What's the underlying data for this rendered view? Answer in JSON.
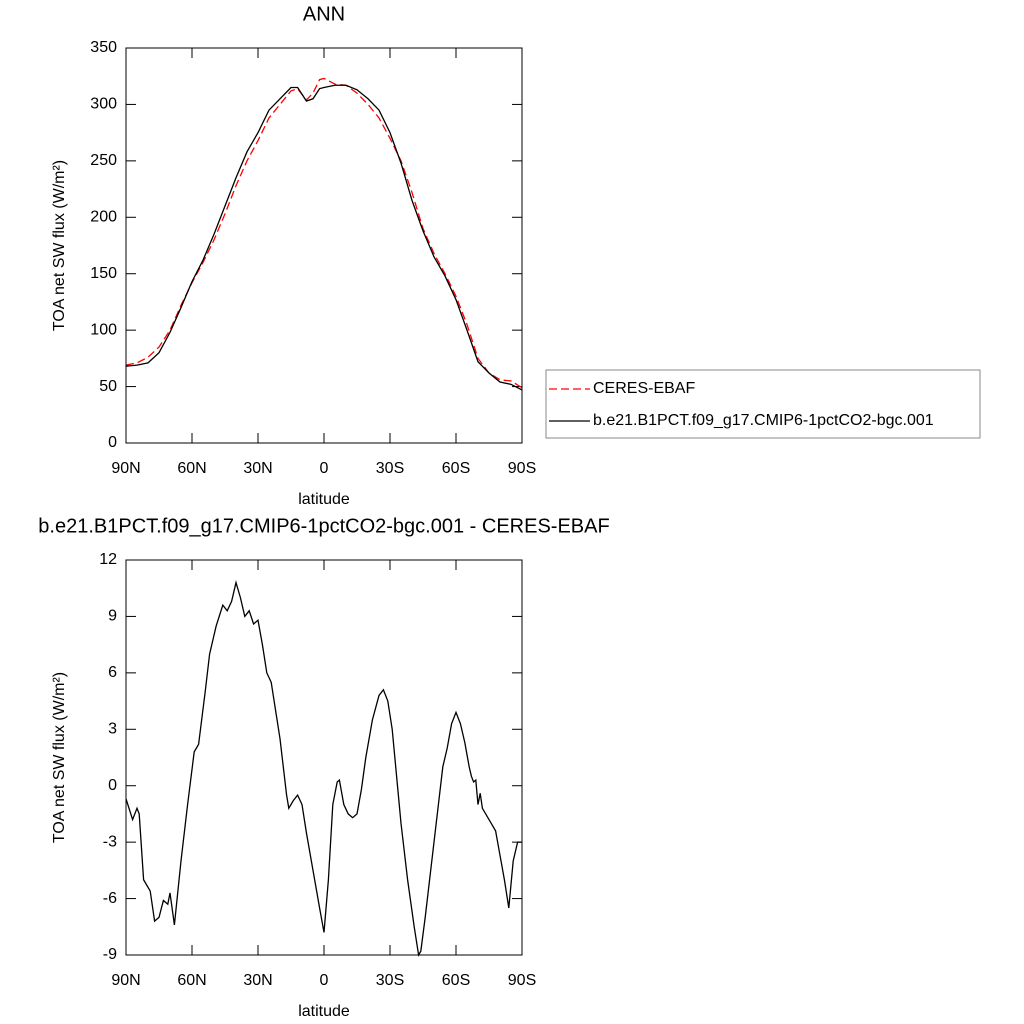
{
  "chart_data": [
    {
      "type": "line",
      "title": "ANN",
      "xlabel": "latitude",
      "ylabel": "TOA net SW flux (W/m²)",
      "x": [
        90,
        85,
        80,
        75,
        70,
        65,
        60,
        55,
        50,
        45,
        40,
        35,
        30,
        25,
        20,
        15,
        12,
        8,
        5,
        2,
        0,
        -5,
        -10,
        -15,
        -20,
        -25,
        -30,
        -35,
        -40,
        -45,
        -50,
        -55,
        -60,
        -65,
        -70,
        -75,
        -80,
        -85,
        -90
      ],
      "xlim": [
        90,
        -90
      ],
      "xticks": [
        {
          "value": 90,
          "label": "90N"
        },
        {
          "value": 60,
          "label": "60N"
        },
        {
          "value": 30,
          "label": "30N"
        },
        0,
        {
          "value": -30,
          "label": "30S"
        },
        {
          "value": -60,
          "label": "60S"
        },
        {
          "value": -90,
          "label": "90S"
        }
      ],
      "ylim": [
        0,
        350
      ],
      "yticks": [
        0,
        50,
        100,
        150,
        200,
        250,
        300,
        350
      ],
      "legend": "right",
      "series": [
        {
          "name": "CERES-EBAF",
          "color": "#ff0000",
          "dash": true,
          "values": [
            69,
            71,
            76,
            85,
            100,
            122,
            142,
            160,
            180,
            203,
            228,
            250,
            268,
            288,
            300,
            312,
            314,
            304,
            310,
            322,
            323,
            318,
            317,
            310,
            300,
            288,
            270,
            250,
            222,
            190,
            168,
            150,
            130,
            105,
            75,
            62,
            56,
            55,
            49
          ]
        },
        {
          "name": "b.e21.B1PCT.f09_g17.CMIP6-1pctCO2-bgc.001",
          "color": "#000000",
          "dash": false,
          "values": [
            68,
            69,
            71,
            80,
            98,
            120,
            143,
            162,
            185,
            210,
            235,
            258,
            275,
            295,
            305,
            315,
            315,
            303,
            305,
            314,
            315,
            317,
            317,
            313,
            305,
            295,
            275,
            248,
            215,
            188,
            165,
            148,
            127,
            100,
            72,
            62,
            54,
            52,
            47
          ]
        }
      ]
    },
    {
      "type": "line",
      "title": "b.e21.B1PCT.f09_g17.CMIP6-1pctCO2-bgc.001 - CERES-EBAF",
      "xlabel": "latitude",
      "ylabel": "TOA net SW flux (W/m²)",
      "x": [
        90,
        87,
        85,
        84,
        82,
        79,
        77,
        75,
        73,
        71,
        70,
        68,
        65,
        62,
        59,
        57,
        54,
        52,
        49,
        46,
        44,
        42,
        40,
        38,
        36,
        34,
        32,
        30,
        28,
        26,
        24,
        22,
        20,
        17,
        16,
        14,
        12,
        10,
        8,
        5,
        2,
        0,
        -2,
        -4,
        -6,
        -7,
        -9,
        -11,
        -13,
        -15,
        -17,
        -19,
        -22,
        -25,
        -27,
        -29,
        -31,
        -33,
        -35,
        -38,
        -41,
        -43,
        -44,
        -46,
        -48,
        -50,
        -52,
        -54,
        -56,
        -58,
        -60,
        -62,
        -64,
        -66,
        -67,
        -68,
        -69,
        -70,
        -71,
        -72,
        -74,
        -76,
        -78,
        -80,
        -82,
        -84,
        -86,
        -88,
        -90
      ],
      "xlim": [
        90,
        -90
      ],
      "xticks": [
        {
          "value": 90,
          "label": "90N"
        },
        {
          "value": 60,
          "label": "60N"
        },
        {
          "value": 30,
          "label": "30N"
        },
        0,
        {
          "value": -30,
          "label": "30S"
        },
        {
          "value": -60,
          "label": "60S"
        },
        {
          "value": -90,
          "label": "90S"
        }
      ],
      "ylim": [
        -9,
        12
      ],
      "yticks": [
        -9,
        -6,
        -3,
        0,
        3,
        6,
        9,
        12
      ],
      "series": [
        {
          "color": "#000000",
          "dash": false,
          "values": [
            -0.7,
            -1.8,
            -1.2,
            -1.5,
            -5,
            -5.6,
            -7.2,
            -7,
            -6.1,
            -6.3,
            -5.7,
            -7.4,
            -4,
            -1,
            1.8,
            2.2,
            5,
            7,
            8.5,
            9.6,
            9.3,
            9.8,
            10.8,
            10,
            9,
            9.3,
            8.6,
            8.8,
            7.5,
            6,
            5.5,
            4,
            2.5,
            -0.5,
            -1.2,
            -0.8,
            -0.5,
            -1,
            -2.5,
            -4.5,
            -6.5,
            -7.8,
            -5,
            -1,
            0.2,
            0.3,
            -1,
            -1.5,
            -1.7,
            -1.5,
            -0.2,
            1.5,
            3.5,
            4.8,
            5.1,
            4.5,
            3,
            0.5,
            -2,
            -5,
            -7.5,
            -9,
            -8.8,
            -7,
            -5,
            -3,
            -1,
            1,
            2,
            3.3,
            3.9,
            3.3,
            2.3,
            1,
            0.5,
            0.2,
            0.3,
            -1,
            -0.4,
            -1.2,
            -1.6,
            -2,
            -2.4,
            -3.7,
            -5,
            -6.5,
            -4,
            -3,
            -3
          ]
        }
      ]
    }
  ]
}
